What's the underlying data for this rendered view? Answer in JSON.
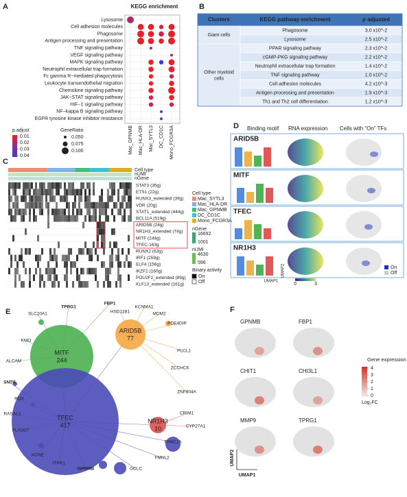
{
  "panel_a": {
    "letter": "A",
    "title": "KEGG enrichment",
    "pathways": [
      "Lysosome",
      "Cell adhesion molecules",
      "Phagosome",
      "Antigen processing and presentation",
      "TNF signaling pathway",
      "VEGF signaling pathway",
      "MAPK signaling pathway",
      "Neutrophil extracellular trap formation",
      "Fc gamma R−mediated phagocytosis",
      "Leukocyte transendothelial migration",
      "Chemokine signaling pathway",
      "JAK−STAT signaling pathway",
      "HIF−1 signaling pathway",
      "NF−kappa B signaling pathway",
      "EGFR tyrosine kinase inhibitor resistance"
    ],
    "highlight_color": "#e8202a",
    "clusters": [
      "Mac_GPNMB",
      "Mac_HLA-DR",
      "Mac_SYTL3",
      "DC_CD1C",
      "Mono_FCGR3A"
    ],
    "gene_ratio": [
      [
        0.1,
        null,
        null,
        null,
        null
      ],
      [
        null,
        0.09,
        0.09,
        0.07,
        0.09
      ],
      [
        null,
        0.1,
        0.09,
        0.08,
        0.1
      ],
      [
        null,
        0.1,
        0.09,
        0.08,
        0.1
      ],
      [
        null,
        null,
        0.05,
        null,
        null
      ],
      [
        null,
        null,
        null,
        null,
        0.05
      ],
      [
        null,
        null,
        0.08,
        0.07,
        0.09
      ],
      [
        null,
        null,
        0.08,
        null,
        0.09
      ],
      [
        null,
        null,
        0.07,
        null,
        0.07
      ],
      [
        null,
        null,
        0.07,
        null,
        0.08
      ],
      [
        null,
        null,
        0.08,
        null,
        0.1
      ],
      [
        null,
        null,
        0.07,
        null,
        0.08
      ],
      [
        null,
        null,
        0.07,
        null,
        0.07
      ],
      [
        null,
        null,
        null,
        0.05,
        null
      ],
      [
        null,
        null,
        null,
        0.05,
        null
      ]
    ],
    "p_adjust": [
      [
        0.02,
        null,
        null,
        null,
        null
      ],
      [
        null,
        0.01,
        0.01,
        0.015,
        0.01
      ],
      [
        null,
        0.01,
        0.01,
        0.015,
        0.01
      ],
      [
        null,
        0.01,
        0.01,
        0.01,
        0.01
      ],
      [
        null,
        null,
        0.03,
        null,
        null
      ],
      [
        null,
        null,
        null,
        null,
        0.02
      ],
      [
        null,
        null,
        0.01,
        0.04,
        0.01
      ],
      [
        null,
        null,
        0.01,
        null,
        0.01
      ],
      [
        null,
        null,
        0.01,
        null,
        0.015
      ],
      [
        null,
        null,
        0.01,
        null,
        0.01
      ],
      [
        null,
        null,
        0.01,
        null,
        0.01
      ],
      [
        null,
        null,
        0.015,
        null,
        0.01
      ],
      [
        null,
        null,
        0.015,
        null,
        0.015
      ],
      [
        null,
        null,
        null,
        0.035,
        null
      ],
      [
        null,
        null,
        null,
        0.03,
        null
      ]
    ],
    "padj_title": "p.adjust",
    "padj_ticks": [
      0.01,
      0.02,
      0.03,
      0.04
    ],
    "padj_colors": [
      "#e8202a",
      "#3b3bd6"
    ],
    "ratio_title": "GeneRatio",
    "ratio_ticks": [
      {
        "value": 0.05,
        "label": "0.050"
      },
      {
        "value": 0.075,
        "label": "0.075"
      },
      {
        "value": 0.1,
        "label": "0.100"
      }
    ]
  },
  "panel_b": {
    "letter": "B",
    "headers": [
      "Clusters",
      "KEGG pathway enrichment",
      "p adjusted"
    ],
    "groups": [
      {
        "name": "Giant cells",
        "rows": [
          [
            "Phagosome",
            "3.0 x10^-2"
          ],
          [
            "Lysosome",
            "2.5 x10^-2"
          ]
        ]
      },
      {
        "name": "Other myeloid cells",
        "rows": [
          [
            "PPAR signaling pathway",
            "2.3 x10^-2"
          ],
          [
            "cGMP-PKG signaling pathway",
            "2.2 x10^-2"
          ],
          [
            "Neutrophil extracellular trap formation",
            "1.4 x10^-2"
          ],
          [
            "TNF signaling pathway",
            "1.0 x10^-2"
          ],
          [
            "Cell adhesion molecules",
            "4.2 x10^-3"
          ],
          [
            "Antigen processing and presentation",
            "1.9 x10^-3"
          ],
          [
            "Th1 and Th2 cell differentiation",
            "1.2 x10^-3"
          ]
        ]
      }
    ]
  },
  "panel_c": {
    "letter": "C",
    "tracks": [
      "Cell type",
      "nUMI",
      "nGene"
    ],
    "regulons": [
      "STAT3 (35g)",
      "ETS1 (22g)",
      "RUNX3_extended (39g)",
      "VDR (20g)",
      "STAT1_extended (444g)",
      "BCL11A (519g)",
      "ARID5B (24g)",
      "NR1H3_extended (74g)",
      "MITF (244g)",
      "TFEC-163g",
      "RUNX2 (63g)",
      "IRF1 (259g)",
      "ELF4 (156g)",
      "IKZF1 (160g)",
      "POU2F2_extended (89g)",
      "KLF13_extended (161g)"
    ],
    "celltype_title": "Cell type",
    "celltypes": [
      {
        "name": "Mac_SYTL3",
        "color": "#f08a78"
      },
      {
        "name": "Mac_HLA-DR",
        "color": "#7fb2ea"
      },
      {
        "name": "Mac_GPNMB",
        "color": "#3cc07a"
      },
      {
        "name": "DC_CD1C",
        "color": "#38c2d8"
      },
      {
        "name": "Mono_FCGR3A",
        "color": "#d8b020"
      }
    ],
    "ngene_title": "nGene",
    "ngene_ticks": [
      16692,
      1001
    ],
    "numi_title": "nUMI",
    "numi_ticks": [
      4630,
      596
    ],
    "binary_title": "Binary activity",
    "binary_levels": [
      "On",
      "Off"
    ]
  },
  "panel_d": {
    "letter": "D",
    "headers": [
      "Binding motif",
      "RNA expression",
      "Cells with “On” TFs"
    ],
    "tfs": [
      "ARID5B",
      "MITF",
      "TFEC",
      "NR1H3"
    ],
    "scale_ticks": [
      0,
      3
    ],
    "axis_x": "UMAP1",
    "axis_y": "UMAP2",
    "levels": [
      "On",
      "Off"
    ]
  },
  "panel_e": {
    "letter": "E",
    "hubs": [
      {
        "name": "MITF",
        "count": "244",
        "color": "#4caf50"
      },
      {
        "name": "ARID5B",
        "count": "77",
        "color": "#f5a742"
      },
      {
        "name": "TFEC",
        "count": "417",
        "color": "#4b4bb8"
      },
      {
        "name": "NR1H3",
        "count": "10",
        "color": "#e05050"
      }
    ],
    "genes": [
      "SLC20A1",
      "TPRG1",
      "FBP1",
      "HSD11B1",
      "KCNMA1",
      "MDM2",
      "PDE4DIP",
      "KMO",
      "ALCAM",
      "PLCL1",
      "ZCCHC6",
      "SNTB",
      "ZNF804A",
      "RDX",
      "RASAL2",
      "CRIM1",
      "PLA2G7",
      "CYP27A1",
      "KCNE",
      "ITPR1",
      "GPNMB",
      "GCLC",
      "FMNL2",
      "FAM21A"
    ]
  },
  "panel_f": {
    "letter": "F",
    "genes": [
      "GPNMB",
      "FBP1",
      "CHIT1",
      "CHI3L1",
      "MMP9",
      "TPRG1"
    ],
    "legend_title": "Gene expression",
    "legend_ticks": [
      4,
      3,
      2,
      1,
      0
    ],
    "legend_unit": "Log₂FC",
    "axis_x": "UMAP1",
    "axis_y": "UMAP2"
  }
}
